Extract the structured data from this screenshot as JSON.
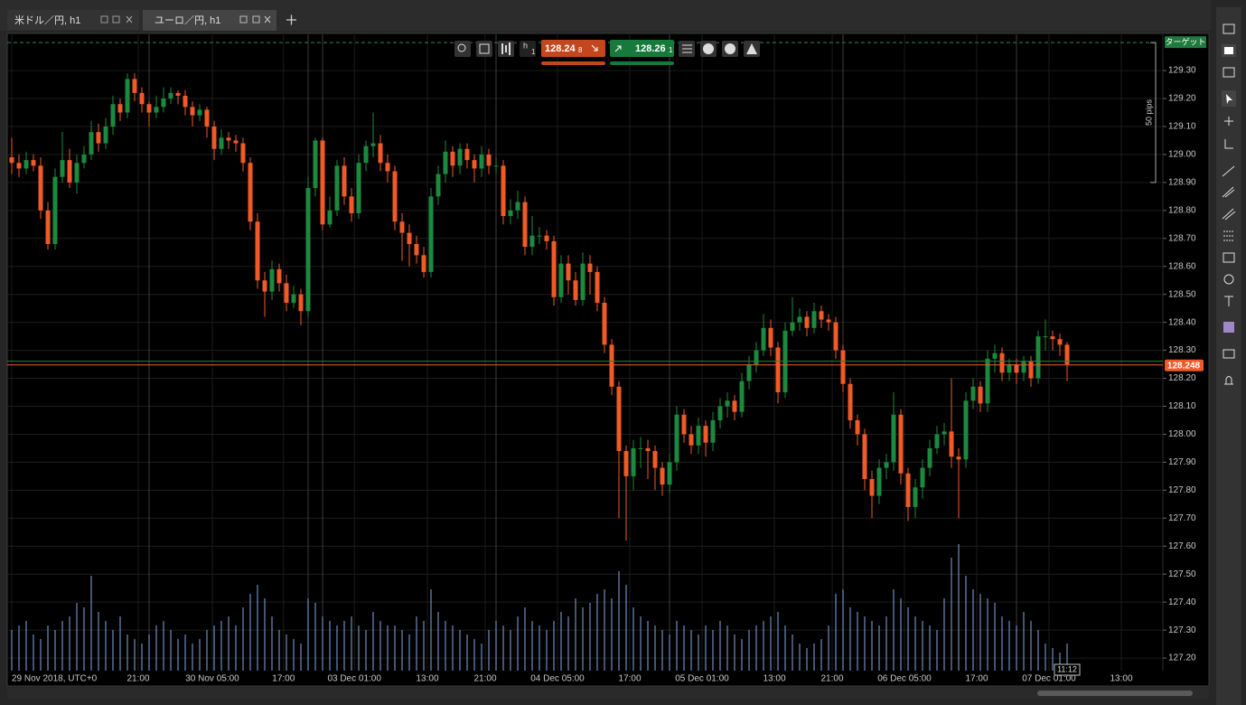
{
  "tabs": [
    "米ドル／円, h1",
    "ユーロ／円, h1"
  ],
  "toolbar": {
    "timeframe": "h",
    "timeframe_sub": "1",
    "bid": "128.24",
    "bid_pip": "8",
    "ask": "128.26",
    "ask_pip": "1"
  },
  "chart_data": {
    "type": "candlestick",
    "up_color": "#1b8a3e",
    "down_color": "#ef5a28",
    "volume_color": "#86a9e2",
    "ylim": [
      127.155,
      129.423
    ],
    "yticks": [
      {
        "value": 127.2,
        "label": "127.20"
      },
      {
        "value": 127.3,
        "label": "127.30"
      },
      {
        "value": 127.4,
        "label": "127.40"
      },
      {
        "value": 127.5,
        "label": "127.50"
      },
      {
        "value": 127.6,
        "label": "127.60"
      },
      {
        "value": 127.7,
        "label": "127.70"
      },
      {
        "value": 127.8,
        "label": "127.80"
      },
      {
        "value": 127.9,
        "label": "127.90"
      },
      {
        "value": 128.0,
        "label": "128.00"
      },
      {
        "value": 128.1,
        "label": "128.10"
      },
      {
        "value": 128.2,
        "label": "128.20"
      },
      {
        "value": 128.3,
        "label": "128.30"
      },
      {
        "value": 128.4,
        "label": "128.40"
      },
      {
        "value": 128.5,
        "label": "128.50"
      },
      {
        "value": 128.6,
        "label": "128.60"
      },
      {
        "value": 128.7,
        "label": "128.70"
      },
      {
        "value": 128.8,
        "label": "128.80"
      },
      {
        "value": 128.9,
        "label": "128.90"
      },
      {
        "value": 129.0,
        "label": "129.00"
      },
      {
        "value": 129.1,
        "label": "129.10"
      },
      {
        "value": 129.2,
        "label": "129.20"
      },
      {
        "value": 129.3,
        "label": "129.30"
      }
    ],
    "xticks": [
      {
        "value": 0,
        "label": "29 Nov 2018, UTC+0"
      },
      {
        "value": 17.5,
        "label": "21:00"
      },
      {
        "value": 27.75,
        "label": "30 Nov 05:00"
      },
      {
        "value": 37.6,
        "label": "17:00"
      },
      {
        "value": 47.4,
        "label": "03 Dec 01:00"
      },
      {
        "value": 57.5,
        "label": "13:00"
      },
      {
        "value": 65.5,
        "label": "21:00"
      },
      {
        "value": 75.5,
        "label": "04 Dec 05:00"
      },
      {
        "value": 85.5,
        "label": "17:00"
      },
      {
        "value": 95.5,
        "label": "05 Dec 01:00"
      },
      {
        "value": 105.5,
        "label": "13:00"
      },
      {
        "value": 113.5,
        "label": "21:00"
      },
      {
        "value": 123.5,
        "label": "06 Dec 05:00"
      },
      {
        "value": 133.5,
        "label": "17:00"
      },
      {
        "value": 143.5,
        "label": "07 Dec 01:00"
      },
      {
        "value": 153.5,
        "label": "13:00"
      }
    ],
    "day_breaks": [
      19,
      41,
      43,
      67,
      91,
      115,
      139
    ],
    "open": [
      128.99,
      128.97,
      128.95,
      128.98,
      128.96,
      128.8,
      128.68,
      128.92,
      128.98,
      128.9,
      128.97,
      129.0,
      129.08,
      129.04,
      129.1,
      129.18,
      129.15,
      129.27,
      129.22,
      129.18,
      129.15,
      129.17,
      129.2,
      129.22,
      129.21,
      129.17,
      129.14,
      129.16,
      129.1,
      129.02,
      129.06,
      129.05,
      129.04,
      128.97,
      128.76,
      128.55,
      128.51,
      128.59,
      128.54,
      128.47,
      128.5,
      128.44,
      128.88,
      129.05,
      128.75,
      128.8,
      128.96,
      128.85,
      128.79,
      128.97,
      129.03,
      129.04,
      128.97,
      128.94,
      128.76,
      128.72,
      128.68,
      128.64,
      128.58,
      128.85,
      128.93,
      129.01,
      128.96,
      129.02,
      128.98,
      128.95,
      129.0,
      128.96,
      128.96,
      128.78,
      128.8,
      128.83,
      128.67,
      128.71,
      128.71,
      128.69,
      128.49,
      128.61,
      128.55,
      128.48,
      128.61,
      128.58,
      128.47,
      128.32,
      128.17,
      127.94,
      127.85,
      127.95,
      127.95,
      127.94,
      127.88,
      127.82,
      127.9,
      128.07,
      128.0,
      127.96,
      128.03,
      127.97,
      128.05,
      128.1,
      128.12,
      128.08,
      128.19,
      128.25,
      128.3,
      128.38,
      128.31,
      128.15,
      128.37,
      128.4,
      128.42,
      128.38,
      128.44,
      128.41,
      128.4,
      128.3,
      128.18,
      128.05,
      128.0,
      127.84,
      127.78,
      127.88,
      127.9,
      128.07,
      127.86,
      127.74,
      127.81,
      127.88,
      127.95,
      128.0,
      128.01,
      127.92,
      127.91,
      128.12,
      128.17,
      128.11,
      128.27,
      128.29,
      128.22,
      128.25,
      128.22,
      128.26,
      128.2,
      128.35,
      128.35,
      128.34,
      128.32
    ],
    "high": [
      129.06,
      129.0,
      129.01,
      129.0,
      128.99,
      128.83,
      128.95,
      129.08,
      129.02,
      129.0,
      129.03,
      129.12,
      129.11,
      129.13,
      129.21,
      129.2,
      129.29,
      129.29,
      129.24,
      129.19,
      129.21,
      129.24,
      129.24,
      129.23,
      129.23,
      129.19,
      129.18,
      129.17,
      129.12,
      129.09,
      129.08,
      129.07,
      129.06,
      128.99,
      128.79,
      128.58,
      128.62,
      128.61,
      128.57,
      128.53,
      128.52,
      128.92,
      129.06,
      129.06,
      128.85,
      128.98,
      128.99,
      128.88,
      129.0,
      129.05,
      129.15,
      129.07,
      129.0,
      128.96,
      128.79,
      128.75,
      128.71,
      128.67,
      128.88,
      128.96,
      129.05,
      129.03,
      129.04,
      129.04,
      129.0,
      129.03,
      129.02,
      128.99,
      128.98,
      128.84,
      128.87,
      128.85,
      128.78,
      128.74,
      128.73,
      128.71,
      128.64,
      128.64,
      128.58,
      128.65,
      128.64,
      128.6,
      128.49,
      128.34,
      128.19,
      127.96,
      127.98,
      127.99,
      127.98,
      127.96,
      127.9,
      127.93,
      128.1,
      128.09,
      128.03,
      128.06,
      128.05,
      128.08,
      128.13,
      128.15,
      128.14,
      128.22,
      128.28,
      128.33,
      128.43,
      128.41,
      128.33,
      128.4,
      128.49,
      128.45,
      128.44,
      128.47,
      128.46,
      128.43,
      128.42,
      128.32,
      128.2,
      128.07,
      128.02,
      127.87,
      127.91,
      127.93,
      128.15,
      128.09,
      127.88,
      127.84,
      127.91,
      127.98,
      128.03,
      128.04,
      128.2,
      127.95,
      128.15,
      128.2,
      128.19,
      128.3,
      128.32,
      128.31,
      128.27,
      128.27,
      128.28,
      128.28,
      128.37,
      128.41,
      128.37,
      128.36,
      128.33
    ],
    "low": [
      128.93,
      128.92,
      128.93,
      128.94,
      128.77,
      128.66,
      128.66,
      128.9,
      128.88,
      128.86,
      128.95,
      128.98,
      129.01,
      129.02,
      129.07,
      129.12,
      129.13,
      129.19,
      129.15,
      129.1,
      129.13,
      129.15,
      129.18,
      129.18,
      129.14,
      129.1,
      129.12,
      129.06,
      128.98,
      129.0,
      129.02,
      129.01,
      128.94,
      128.73,
      128.52,
      128.42,
      128.48,
      128.51,
      128.44,
      128.45,
      128.39,
      128.42,
      128.85,
      128.73,
      128.74,
      128.78,
      128.82,
      128.76,
      128.77,
      128.94,
      128.99,
      128.94,
      128.9,
      128.73,
      128.62,
      128.6,
      128.61,
      128.56,
      128.56,
      128.82,
      128.9,
      128.92,
      128.93,
      128.95,
      128.9,
      128.92,
      128.93,
      128.93,
      128.75,
      128.75,
      128.77,
      128.64,
      128.64,
      128.68,
      128.66,
      128.46,
      128.47,
      128.5,
      128.46,
      128.46,
      128.5,
      128.44,
      128.29,
      128.14,
      127.7,
      127.62,
      127.8,
      127.88,
      127.84,
      127.8,
      127.78,
      127.79,
      127.87,
      127.97,
      127.93,
      127.93,
      127.92,
      127.94,
      128.02,
      128.06,
      128.05,
      128.06,
      128.16,
      128.22,
      128.28,
      128.28,
      128.11,
      128.13,
      128.35,
      128.37,
      128.35,
      128.36,
      128.38,
      128.37,
      128.27,
      128.15,
      128.02,
      127.96,
      127.8,
      127.7,
      127.75,
      127.84,
      127.87,
      127.82,
      127.69,
      127.7,
      127.77,
      127.85,
      127.93,
      127.96,
      127.88,
      127.7,
      127.88,
      128.09,
      128.08,
      128.08,
      128.22,
      128.19,
      128.19,
      128.18,
      128.19,
      128.17,
      128.18,
      128.3,
      128.3,
      128.28,
      128.19
    ],
    "close": [
      128.97,
      128.95,
      128.98,
      128.96,
      128.8,
      128.68,
      128.92,
      128.98,
      128.9,
      128.97,
      129.0,
      129.08,
      129.04,
      129.1,
      129.18,
      129.15,
      129.27,
      129.22,
      129.18,
      129.15,
      129.17,
      129.2,
      129.22,
      129.21,
      129.17,
      129.14,
      129.16,
      129.1,
      129.02,
      129.06,
      129.05,
      129.04,
      128.97,
      128.76,
      128.55,
      128.51,
      128.59,
      128.54,
      128.47,
      128.5,
      128.44,
      128.88,
      129.05,
      128.75,
      128.8,
      128.96,
      128.85,
      128.79,
      128.97,
      129.03,
      129.04,
      128.97,
      128.94,
      128.76,
      128.72,
      128.68,
      128.64,
      128.58,
      128.85,
      128.93,
      129.01,
      128.96,
      129.02,
      128.98,
      128.95,
      129.0,
      128.96,
      128.96,
      128.78,
      128.8,
      128.83,
      128.67,
      128.71,
      128.71,
      128.69,
      128.49,
      128.61,
      128.55,
      128.48,
      128.61,
      128.58,
      128.47,
      128.32,
      128.17,
      127.94,
      127.85,
      127.95,
      127.95,
      127.94,
      127.88,
      127.82,
      127.9,
      128.07,
      128.0,
      127.96,
      128.03,
      127.97,
      128.05,
      128.1,
      128.12,
      128.08,
      128.19,
      128.25,
      128.3,
      128.38,
      128.31,
      128.15,
      128.37,
      128.4,
      128.42,
      128.38,
      128.44,
      128.41,
      128.4,
      128.3,
      128.18,
      128.05,
      128.0,
      127.84,
      127.78,
      127.88,
      127.9,
      128.07,
      127.86,
      127.74,
      127.81,
      127.88,
      127.95,
      128.0,
      128.01,
      127.92,
      127.91,
      128.12,
      128.17,
      128.11,
      128.27,
      128.29,
      128.22,
      128.25,
      128.22,
      128.26,
      128.2,
      128.35,
      128.35,
      128.34,
      128.32,
      128.25
    ],
    "volume": [
      45,
      50,
      55,
      40,
      35,
      50,
      45,
      55,
      60,
      75,
      70,
      105,
      65,
      55,
      45,
      60,
      40,
      35,
      30,
      40,
      50,
      55,
      45,
      35,
      40,
      30,
      35,
      45,
      50,
      55,
      60,
      50,
      70,
      85,
      95,
      80,
      60,
      45,
      40,
      35,
      30,
      80,
      75,
      60,
      55,
      50,
      55,
      60,
      50,
      45,
      65,
      55,
      50,
      50,
      45,
      40,
      60,
      55,
      90,
      65,
      55,
      50,
      45,
      40,
      35,
      30,
      45,
      55,
      50,
      45,
      60,
      70,
      55,
      50,
      45,
      55,
      65,
      60,
      80,
      70,
      75,
      85,
      90,
      80,
      110,
      95,
      70,
      60,
      55,
      50,
      45,
      40,
      55,
      50,
      45,
      40,
      50,
      45,
      55,
      50,
      40,
      35,
      45,
      50,
      55,
      60,
      65,
      50,
      40,
      30,
      25,
      30,
      35,
      50,
      85,
      90,
      70,
      65,
      60,
      55,
      50,
      60,
      90,
      80,
      70,
      60,
      55,
      50,
      45,
      80,
      125,
      140,
      105,
      90,
      85,
      80,
      75,
      60,
      55,
      50,
      65,
      55,
      45,
      30,
      25,
      20,
      30
    ],
    "bid_line": 128.248,
    "ask_line": 128.261,
    "target_line": 129.4,
    "target_label": "ターゲット",
    "pips_ruler": [
      129.4,
      128.9
    ],
    "pips_label": "50 pips",
    "current_time": "11:12"
  }
}
